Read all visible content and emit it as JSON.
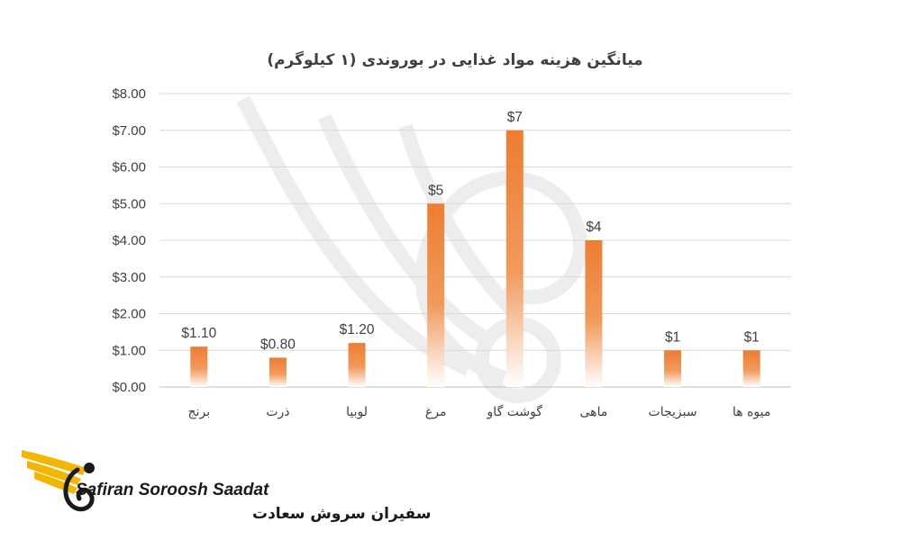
{
  "chart_data": {
    "type": "bar",
    "title": "میانگین هزینه مواد غذایی در بوروندی (۱ کیلوگرم)",
    "categories": [
      "برنج",
      "ذرت",
      "لوبیا",
      "مرغ",
      "گوشت گاو",
      "ماهی",
      "سبزیجات",
      "میوه ها"
    ],
    "values": [
      1.1,
      0.8,
      1.2,
      5,
      7,
      4,
      1,
      1
    ],
    "data_labels": [
      "$1.10",
      "$0.80",
      "$1.20",
      "$5",
      "$7",
      "$4",
      "$1",
      "$1"
    ],
    "y_ticks": [
      "$0.00",
      "$1.00",
      "$2.00",
      "$3.00",
      "$4.00",
      "$5.00",
      "$6.00",
      "$7.00",
      "$8.00"
    ],
    "ylim": [
      0,
      8
    ],
    "grid": true,
    "legend": "none",
    "bar_color_top": "#ed7d31",
    "bar_color_bottom": "#ffffff"
  },
  "brand": {
    "name_en": "Safiran Soroosh Saadat",
    "name_fa": "سفیران سروش سعادت",
    "colors": {
      "gold": "#f2b705",
      "dark": "#1a1a1a"
    }
  }
}
